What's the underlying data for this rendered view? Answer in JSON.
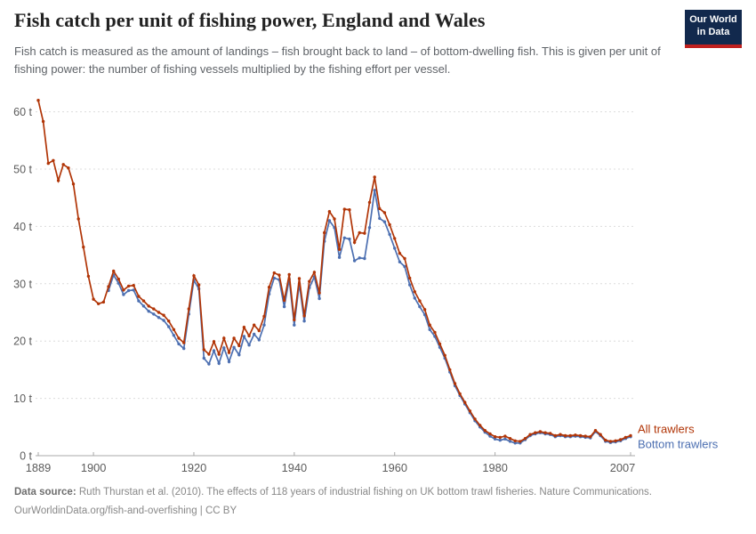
{
  "header": {
    "title": "Fish catch per unit of fishing power, England and Wales",
    "logo_line1": "Our World",
    "logo_line2": "in Data"
  },
  "subtitle": "Fish catch is measured as the amount of landings – fish brought back to land – of bottom-dwelling fish. This is given per unit of fishing power: the number of fishing vessels multiplied by the fishing effort per vessel.",
  "footer": {
    "source_label": "Data source:",
    "source_text": " Ruth Thurstan et al. (2010). The effects of 118 years of industrial fishing on UK bottom trawl fisheries. Nature Communications.",
    "license_line": "OurWorldinData.org/fish-and-overfishing | CC BY"
  },
  "chart_data": {
    "type": "line",
    "title": "Fish catch per unit of fishing power, England and Wales",
    "xlabel": "",
    "ylabel": "",
    "unit": "t",
    "xlim": [
      1889,
      2007
    ],
    "ylim": [
      0,
      62
    ],
    "grid": true,
    "legend_position": "end-of-line",
    "x_ticks": [
      1889,
      1900,
      1920,
      1940,
      1960,
      1980,
      2007
    ],
    "y_ticks": [
      0,
      10,
      20,
      30,
      40,
      50,
      60
    ],
    "y_tick_suffix": " t",
    "axis_color": "#a8a8a8",
    "grid_color": "#dcdcdc",
    "tick_label_color": "#5b5b5b",
    "series": [
      {
        "name": "Bottom trawlers",
        "color": "#4c6fb1",
        "start_year": 1903,
        "values": [
          28.8,
          31.5,
          30.1,
          28.1,
          28.8,
          28.9,
          27.0,
          26.1,
          25.2,
          24.7,
          24.1,
          23.6,
          22.5,
          21.0,
          19.5,
          18.7,
          24.7,
          30.6,
          29.1,
          17.0,
          16.0,
          18.3,
          16.1,
          18.8,
          16.4,
          18.9,
          17.6,
          20.8,
          19.3,
          21.2,
          20.2,
          22.8,
          28.2,
          31.0,
          30.7,
          26.0,
          30.8,
          22.8,
          30.0,
          23.5,
          29.3,
          31.2,
          27.4,
          37.4,
          41.0,
          39.8,
          34.6,
          38.0,
          37.8,
          34.0,
          34.5,
          34.4,
          39.8,
          46.3,
          41.4,
          40.8,
          38.6,
          36.2,
          33.8,
          33.0,
          29.8,
          27.5,
          26.0,
          24.6,
          22.0,
          20.8,
          18.9,
          17.0,
          14.6,
          12.2,
          10.5,
          9.0,
          7.5,
          6.1,
          5.0,
          4.1,
          3.4,
          2.9,
          2.7,
          2.9,
          2.5,
          2.2,
          2.2,
          2.8,
          3.5,
          3.8,
          4.0,
          3.8,
          3.7,
          3.3,
          3.5,
          3.3,
          3.3,
          3.4,
          3.3,
          3.2,
          3.1,
          4.2,
          3.5,
          2.5,
          2.3,
          2.4,
          2.6,
          3.0,
          3.3
        ]
      },
      {
        "name": "All trawlers",
        "color": "#b13507",
        "start_year": 1889,
        "values": [
          62.0,
          58.3,
          51.0,
          51.5,
          48.0,
          50.8,
          50.2,
          47.4,
          41.3,
          36.4,
          31.3,
          27.3,
          26.5,
          26.8,
          29.5,
          32.2,
          30.8,
          28.9,
          29.6,
          29.7,
          27.8,
          27.0,
          26.1,
          25.6,
          25.0,
          24.5,
          23.5,
          22.0,
          20.5,
          19.7,
          25.6,
          31.4,
          29.8,
          18.5,
          17.7,
          19.9,
          17.7,
          20.5,
          18.0,
          20.5,
          19.2,
          22.4,
          20.9,
          22.8,
          21.8,
          24.3,
          29.4,
          31.9,
          31.5,
          27.1,
          31.6,
          23.7,
          30.9,
          24.4,
          30.4,
          32.0,
          28.4,
          38.9,
          42.6,
          41.3,
          36.0,
          43.0,
          42.9,
          37.2,
          38.9,
          38.8,
          44.2,
          48.6,
          43.1,
          42.4,
          40.3,
          37.9,
          35.3,
          34.4,
          31.0,
          28.6,
          27.0,
          25.5,
          22.8,
          21.5,
          19.5,
          17.5,
          15.0,
          12.6,
          10.8,
          9.3,
          7.8,
          6.4,
          5.3,
          4.4,
          3.8,
          3.3,
          3.2,
          3.4,
          3.0,
          2.6,
          2.5,
          3.0,
          3.7,
          4.0,
          4.2,
          4.0,
          3.9,
          3.5,
          3.7,
          3.5,
          3.5,
          3.6,
          3.5,
          3.4,
          3.3,
          4.4,
          3.7,
          2.7,
          2.5,
          2.6,
          2.8,
          3.2,
          3.5
        ]
      }
    ],
    "end_labels": [
      "All trawlers",
      "Bottom trawlers"
    ]
  }
}
